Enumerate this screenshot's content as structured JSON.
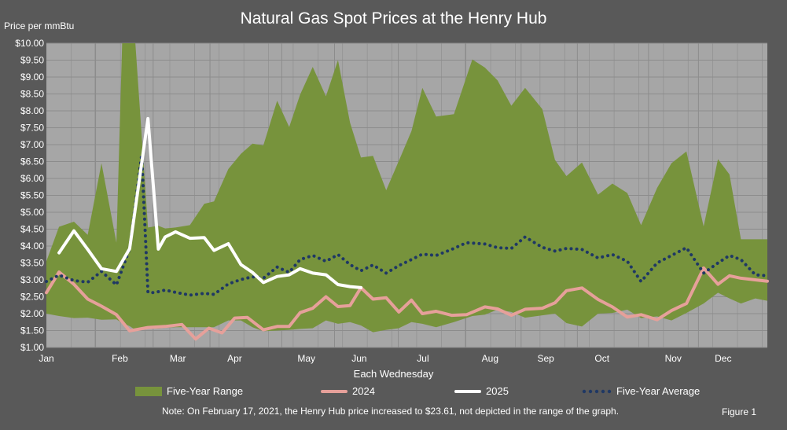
{
  "title": "Natural Gas Spot Prices at the Henry Hub",
  "y_axis_label": "Price per mmBtu",
  "x_axis_label": "Each Wednesday",
  "figure_label": "Figure 1",
  "note": "Note: On February 17, 2021,  the Henry Hub price increased to $23.61,  not depicted in the range of the graph.",
  "chart_data": {
    "type": "area",
    "title": "Natural Gas Spot Prices at the Henry Hub",
    "xlabel": "Each Wednesday",
    "ylabel": "Price per mmBtu",
    "ylim": [
      1.0,
      10.0
    ],
    "y_ticks": [
      "$1.00",
      "$1.50",
      "$2.00",
      "$2.50",
      "$3.00",
      "$3.50",
      "$4.00",
      "$4.50",
      "$5.00",
      "$5.50",
      "$6.00",
      "$6.50",
      "$7.00",
      "$7.50",
      "$8.00",
      "$8.50",
      "$9.00",
      "$9.50",
      "$10.00"
    ],
    "x_ticks": [
      "Jan",
      "Feb",
      "Mar",
      "Apr",
      "May",
      "Jun",
      "Jul",
      "Aug",
      "Sep",
      "Oct",
      "Nov",
      "Dec"
    ],
    "x_tick_weeks": [
      0,
      12.8,
      22.9,
      32.8,
      45.3,
      54.5,
      65.6,
      77.3,
      87.0,
      96.8,
      109.2,
      117.9
    ],
    "grid": true,
    "legend_position": "bottom",
    "x_unit": "week of year (0 = first Wednesday of January)",
    "series": [
      {
        "name": "Five-Year Range",
        "kind": "range",
        "color": "#77933c",
        "x": [
          0,
          2.2,
          4.8,
          7.2,
          9.6,
          12.2,
          13.2,
          14.5,
          15.5,
          17.7,
          19.5,
          20.7,
          22.5,
          25.0,
          27.5,
          29.2,
          31.7,
          33.9,
          35.9,
          37.8,
          40.2,
          42.3,
          44.2,
          46.4,
          48.7,
          50.8,
          52.9,
          54.8,
          56.9,
          59.2,
          61.4,
          63.6,
          65.5,
          67.9,
          71.0,
          74.2,
          76.4,
          78.6,
          81.0,
          83.4,
          86.4,
          88.6,
          90.6,
          93.3,
          96.1,
          98.6,
          101.2,
          103.6,
          106.4,
          108.9,
          111.5,
          114.5,
          117.0,
          119.0,
          121.0,
          123.5,
          125.6
        ],
        "lows": [
          2.0,
          1.93,
          1.87,
          1.88,
          1.82,
          1.83,
          1.72,
          1.63,
          1.52,
          1.56,
          1.56,
          1.58,
          1.6,
          1.6,
          1.6,
          1.6,
          1.8,
          1.8,
          1.6,
          1.48,
          1.5,
          1.52,
          1.55,
          1.57,
          1.8,
          1.7,
          1.75,
          1.65,
          1.45,
          1.52,
          1.57,
          1.75,
          1.7,
          1.6,
          1.75,
          1.93,
          1.97,
          2.12,
          2.05,
          1.88,
          1.95,
          2.0,
          1.72,
          1.62,
          2.0,
          2.02,
          2.12,
          1.87,
          1.92,
          1.8,
          2.02,
          2.3,
          2.62,
          2.45,
          2.3,
          2.45,
          2.38
        ],
        "highs": [
          3.55,
          4.57,
          4.72,
          4.33,
          6.45,
          4.1,
          10.0,
          10.0,
          10.0,
          4.55,
          4.6,
          4.52,
          4.55,
          4.62,
          5.25,
          5.32,
          6.28,
          6.73,
          7.03,
          6.98,
          8.3,
          7.52,
          8.48,
          9.3,
          8.43,
          9.5,
          7.65,
          6.62,
          6.67,
          5.65,
          6.52,
          7.4,
          8.68,
          7.83,
          7.9,
          9.52,
          9.28,
          8.9,
          8.15,
          8.68,
          8.05,
          6.55,
          6.07,
          6.47,
          5.52,
          5.85,
          5.57,
          4.62,
          5.72,
          6.45,
          6.8,
          4.58,
          6.57,
          6.12,
          4.2,
          4.2,
          4.2
        ]
      },
      {
        "name": "2024",
        "kind": "line",
        "color": "#e6a09a",
        "x": [
          0,
          2.2,
          4.8,
          7.2,
          9.6,
          12.2,
          14.5,
          17.7,
          20.7,
          23.6,
          26.0,
          28.3,
          30.6,
          32.8,
          35.0,
          37.8,
          40.2,
          42.3,
          44.2,
          46.4,
          48.7,
          50.8,
          52.9,
          54.8,
          56.9,
          59.2,
          61.4,
          63.6,
          65.5,
          67.9,
          70.6,
          73.2,
          76.4,
          78.6,
          81.0,
          83.4,
          86.4,
          88.6,
          90.6,
          93.3,
          96.1,
          98.6,
          101.2,
          103.6,
          106.4,
          108.9,
          111.5,
          114.5,
          117.0,
          119.0,
          121.0,
          123.5,
          125.6
        ],
        "values": [
          2.62,
          3.23,
          2.87,
          2.43,
          2.22,
          1.97,
          1.49,
          1.59,
          1.62,
          1.68,
          1.25,
          1.57,
          1.43,
          1.87,
          1.89,
          1.52,
          1.62,
          1.62,
          2.03,
          2.16,
          2.5,
          2.21,
          2.24,
          2.77,
          2.43,
          2.47,
          2.05,
          2.4,
          2.0,
          2.07,
          1.95,
          1.97,
          2.2,
          2.14,
          1.95,
          2.13,
          2.16,
          2.32,
          2.68,
          2.76,
          2.42,
          2.2,
          1.9,
          1.97,
          1.82,
          2.09,
          2.3,
          3.35,
          2.87,
          3.12,
          3.05,
          3.0,
          2.96
        ]
      },
      {
        "name": "2025",
        "kind": "line",
        "color": "#ffffff",
        "x": [
          2.2,
          4.8,
          7.2,
          9.6,
          12.2,
          14.5,
          17.7,
          19.5,
          20.7,
          22.5,
          25.0,
          27.5,
          29.2,
          31.7,
          33.9,
          35.9,
          37.8,
          40.2,
          42.3,
          44.2,
          46.4,
          48.7,
          50.8,
          52.9,
          54.8
        ],
        "values": [
          3.8,
          4.45,
          3.9,
          3.33,
          3.25,
          3.92,
          7.77,
          3.91,
          4.27,
          4.42,
          4.23,
          4.25,
          3.87,
          4.07,
          3.45,
          3.22,
          2.92,
          3.1,
          3.15,
          3.33,
          3.2,
          3.15,
          2.86,
          2.8,
          2.77
        ]
      },
      {
        "name": "Five-Year Average",
        "kind": "dotted",
        "color": "#1f3864",
        "x": [
          0,
          2.2,
          4.8,
          7.2,
          9.6,
          12.2,
          14.5,
          16.6,
          17.7,
          18.8,
          20.7,
          22.5,
          25.0,
          27.5,
          29.2,
          31.7,
          33.9,
          35.9,
          37.8,
          40.2,
          42.3,
          44.2,
          46.4,
          48.7,
          50.8,
          52.9,
          54.8,
          56.9,
          59.2,
          61.4,
          63.6,
          65.5,
          67.9,
          70.6,
          73.2,
          76.4,
          78.6,
          81.0,
          83.4,
          86.4,
          88.6,
          90.6,
          93.3,
          96.1,
          98.6,
          101.2,
          103.6,
          106.4,
          108.9,
          111.5,
          114.5,
          117.0,
          119.0,
          121.0,
          123.5,
          125.6
        ],
        "values": [
          2.95,
          3.14,
          2.98,
          2.93,
          3.25,
          2.85,
          3.92,
          6.7,
          2.63,
          2.62,
          2.7,
          2.63,
          2.55,
          2.6,
          2.57,
          2.88,
          3.01,
          3.09,
          3.05,
          3.38,
          3.22,
          3.6,
          3.72,
          3.55,
          3.75,
          3.45,
          3.27,
          3.44,
          3.2,
          3.42,
          3.6,
          3.76,
          3.72,
          3.9,
          4.1,
          4.06,
          3.95,
          3.93,
          4.27,
          3.96,
          3.85,
          3.93,
          3.9,
          3.65,
          3.75,
          3.55,
          2.95,
          3.5,
          3.72,
          3.95,
          3.2,
          3.5,
          3.72,
          3.6,
          3.15,
          3.12
        ]
      }
    ]
  },
  "legend": [
    {
      "label": "Five-Year Range"
    },
    {
      "label": "2024"
    },
    {
      "label": "2025"
    },
    {
      "label": "Five-Year Average"
    }
  ]
}
